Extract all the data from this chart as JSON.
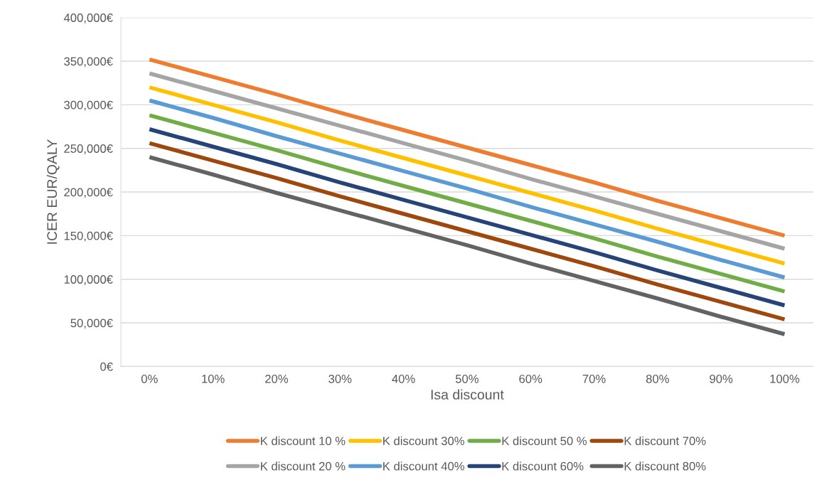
{
  "chart_data": {
    "type": "line",
    "xlabel": "Isa discount",
    "ylabel": "ICER EUR/QALY",
    "categories": [
      "0%",
      "10%",
      "20%",
      "30%",
      "40%",
      "50%",
      "60%",
      "70%",
      "80%",
      "90%",
      "100%"
    ],
    "series": [
      {
        "name": "K discount 10 %",
        "color": "#ed7d31",
        "values": [
          352000,
          332000,
          312000,
          291000,
          271000,
          251000,
          231000,
          211000,
          190000,
          170000,
          150000
        ]
      },
      {
        "name": "K discount 20 %",
        "color": "#a5a5a5",
        "values": [
          336000,
          316000,
          296000,
          276000,
          256000,
          236000,
          215000,
          195000,
          175000,
          155000,
          135000
        ]
      },
      {
        "name": "K discount 30%",
        "color": "#ffc000",
        "values": [
          320000,
          300000,
          280000,
          259000,
          239000,
          219000,
          199000,
          179000,
          158000,
          138000,
          118000
        ]
      },
      {
        "name": "K discount 40%",
        "color": "#5b9bd5",
        "values": [
          305000,
          285000,
          264000,
          244000,
          224000,
          204000,
          183000,
          163000,
          143000,
          122000,
          102000
        ]
      },
      {
        "name": "K discount 50 %",
        "color": "#70ad47",
        "values": [
          288000,
          268000,
          248000,
          227000,
          207000,
          187000,
          167000,
          147000,
          126000,
          106000,
          86000
        ]
      },
      {
        "name": "K discount 60%",
        "color": "#264478",
        "values": [
          272000,
          252000,
          232000,
          211000,
          191000,
          171000,
          151000,
          131000,
          110000,
          90000,
          70000
        ]
      },
      {
        "name": "K discount 70%",
        "color": "#9e480e",
        "values": [
          256000,
          236000,
          216000,
          195000,
          175000,
          155000,
          135000,
          115000,
          94000,
          74000,
          54000
        ]
      },
      {
        "name": "K discount 80%",
        "color": "#636363",
        "values": [
          240000,
          220000,
          199000,
          179000,
          159000,
          139000,
          118000,
          98000,
          78000,
          57000,
          37000
        ]
      }
    ],
    "ylim": [
      0,
      400000
    ],
    "yticks": [
      {
        "value": 0,
        "label": "0€"
      },
      {
        "value": 50000,
        "label": "50,000€"
      },
      {
        "value": 100000,
        "label": "100,000€"
      },
      {
        "value": 150000,
        "label": "150,000€"
      },
      {
        "value": 200000,
        "label": "200,000€"
      },
      {
        "value": 250000,
        "label": "250,000€"
      },
      {
        "value": 300000,
        "label": "300,000€"
      },
      {
        "value": 350000,
        "label": "350,000€"
      },
      {
        "value": 400000,
        "label": "400,000€"
      }
    ],
    "grid": "y",
    "legend": "bottom",
    "marker": "none",
    "line_style": "solid"
  }
}
